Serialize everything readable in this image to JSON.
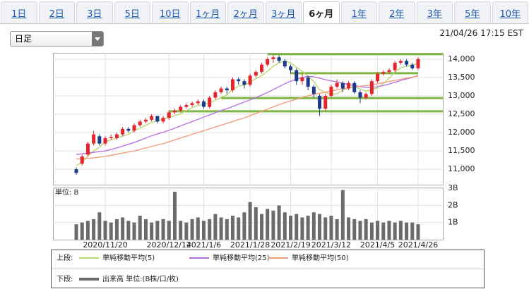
{
  "tabs": [
    "1日",
    "2日",
    "3日",
    "5日",
    "10日",
    "1ヶ月",
    "2ヶ月",
    "3ヶ月",
    "6ヶ月",
    "1年",
    "2年",
    "3年",
    "5年",
    "10年"
  ],
  "active_tab": 8,
  "dropdown": "日足",
  "timestamp": "21/04/26 17:15 EST",
  "legend": {
    "upper": "上段:",
    "lower": "下段:"
  },
  "chart_data": [
    {
      "type": "candlestick",
      "categories": [
        null,
        null,
        null,
        null,
        null,
        "2020/11/20",
        null,
        null,
        null,
        null,
        null,
        null,
        null,
        null,
        null,
        null,
        "2020/12/14",
        null,
        null,
        null,
        null,
        null,
        "2021/1/6",
        null,
        null,
        null,
        null,
        null,
        null,
        null,
        "2021/1/28",
        null,
        null,
        null,
        null,
        null,
        null,
        "2021/2/19",
        null,
        null,
        null,
        null,
        null,
        null,
        "2021/3/12",
        null,
        null,
        null,
        null,
        null,
        null,
        null,
        "2021/4/5",
        null,
        null,
        null,
        null,
        null,
        null,
        "2021/4/26"
      ],
      "open": [
        11000,
        11150,
        11400,
        11700,
        11900,
        11700,
        11850,
        11850,
        11950,
        12100,
        12050,
        12200,
        12300,
        12350,
        12450,
        12300,
        12400,
        12550,
        12600,
        12700,
        12750,
        12800,
        12850,
        12700,
        12950,
        13100,
        13200,
        13150,
        13450,
        13400,
        13300,
        13550,
        13650,
        13850,
        14000,
        14050,
        13950,
        13800,
        13700,
        13400,
        13500,
        13250,
        13000,
        12650,
        13000,
        13250,
        13350,
        13200,
        13350,
        13100,
        12950,
        13050,
        13400,
        13600,
        13650,
        13700,
        13900,
        13950,
        13850,
        13750
      ],
      "high": [
        11050,
        11400,
        11750,
        12050,
        11950,
        11900,
        11950,
        12000,
        12150,
        12150,
        12250,
        12350,
        12400,
        12500,
        12450,
        12450,
        12600,
        12650,
        12750,
        12800,
        12850,
        12900,
        12900,
        13000,
        13150,
        13250,
        13250,
        13500,
        13500,
        13450,
        13600,
        13700,
        13900,
        14050,
        14100,
        14100,
        14000,
        13850,
        13750,
        13600,
        13550,
        13300,
        13050,
        13050,
        13300,
        13450,
        13400,
        13400,
        13400,
        13150,
        13100,
        13450,
        13650,
        13700,
        13750,
        13950,
        14000,
        14000,
        13900,
        14050
      ],
      "low": [
        10850,
        11100,
        11350,
        11650,
        11650,
        11650,
        11800,
        11800,
        11900,
        12000,
        12000,
        12150,
        12250,
        12300,
        12250,
        12250,
        12350,
        12500,
        12550,
        12650,
        12700,
        12750,
        12650,
        12650,
        12900,
        13050,
        13050,
        13100,
        13300,
        13200,
        13250,
        13500,
        13600,
        13800,
        13900,
        13900,
        13750,
        13600,
        13300,
        13300,
        13150,
        12950,
        12450,
        12600,
        12950,
        13200,
        13100,
        13150,
        13050,
        12800,
        12900,
        13000,
        13350,
        13550,
        13600,
        13650,
        13850,
        13800,
        13700,
        13700
      ],
      "close": [
        10900,
        11350,
        11700,
        11950,
        11700,
        11850,
        11880,
        11950,
        12100,
        12050,
        12200,
        12300,
        12350,
        12450,
        12300,
        12400,
        12550,
        12600,
        12700,
        12750,
        12800,
        12850,
        12700,
        12950,
        13100,
        13200,
        13150,
        13450,
        13400,
        13300,
        13550,
        13650,
        13850,
        14000,
        14050,
        13950,
        13800,
        13700,
        13400,
        13500,
        13250,
        13050,
        12650,
        13000,
        13250,
        13350,
        13200,
        13350,
        13100,
        12950,
        13050,
        13400,
        13600,
        13650,
        13700,
        13900,
        13950,
        13850,
        13750,
        14000
      ],
      "up_color": "#e3262c",
      "down_color": "#1c3a8c",
      "series": [
        {
          "name": "単純移動平均(5)",
          "color": "#b5d66a",
          "values": [
            11100,
            11200,
            11350,
            11500,
            11600,
            11750,
            11800,
            11850,
            11900,
            11950,
            12050,
            12120,
            12200,
            12270,
            12320,
            12360,
            12410,
            12460,
            12510,
            12600,
            12680,
            12740,
            12760,
            12810,
            12880,
            12960,
            13020,
            13180,
            13260,
            13300,
            13370,
            13470,
            13550,
            13670,
            13810,
            13900,
            13950,
            13900,
            13780,
            13670,
            13530,
            13390,
            13170,
            13090,
            13040,
            13060,
            13150,
            13230,
            13250,
            13190,
            13130,
            13170,
            13220,
            13330,
            13480,
            13650,
            13760,
            13810,
            13830,
            13890
          ]
        },
        {
          "name": "単純移動平均(25)",
          "color": "#b36ee0",
          "values": [
            11400,
            11420,
            11440,
            11460,
            11480,
            11500,
            11540,
            11580,
            11630,
            11680,
            11730,
            11790,
            11850,
            11910,
            11960,
            12010,
            12060,
            12120,
            12180,
            12240,
            12300,
            12360,
            12420,
            12480,
            12540,
            12600,
            12650,
            12710,
            12770,
            12830,
            12890,
            12950,
            13020,
            13090,
            13170,
            13250,
            13330,
            13400,
            13450,
            13500,
            13530,
            13520,
            13480,
            13440,
            13410,
            13380,
            13340,
            13310,
            13280,
            13250,
            13230,
            13230,
            13250,
            13280,
            13320,
            13370,
            13420,
            13460,
            13500,
            13560
          ]
        },
        {
          "name": "単純移動平均(50)",
          "color": "#f29a7a",
          "values": [
            11280,
            11290,
            11300,
            11310,
            11330,
            11350,
            11380,
            11410,
            11440,
            11470,
            11500,
            11540,
            11580,
            11620,
            11660,
            11700,
            11750,
            11800,
            11850,
            11900,
            11950,
            12000,
            12050,
            12100,
            12150,
            12200,
            12250,
            12300,
            12350,
            12400,
            12460,
            12520,
            12580,
            12640,
            12700,
            12760,
            12810,
            12860,
            12910,
            12960,
            13000,
            13040,
            13070,
            13100,
            13130,
            13160,
            13190,
            13220,
            13240,
            13260,
            13280,
            13300,
            13330,
            13360,
            13390,
            13420,
            13450,
            13480,
            13510,
            13540
          ]
        }
      ],
      "hlines": [
        {
          "value": 14135,
          "start": 33
        },
        {
          "value": 13615,
          "start": 37,
          "end": 59
        },
        {
          "value": 12940,
          "start": 25
        },
        {
          "value": 12580,
          "start": 16
        }
      ],
      "hline_color": "#7fb544",
      "ylim": [
        10580,
        14170
      ],
      "yticks": [
        {
          "value": 11000,
          "label": "11,000"
        },
        {
          "value": 11500,
          "label": "11,500"
        },
        {
          "value": 12000,
          "label": "12,000"
        },
        {
          "value": 12500,
          "label": "12,500"
        },
        {
          "value": 13000,
          "label": "13,000"
        },
        {
          "value": 13500,
          "label": "13,500"
        },
        {
          "value": 14000,
          "label": "14,000"
        }
      ],
      "grid": true
    },
    {
      "type": "bar",
      "unit_label": "単位: B",
      "series": [
        {
          "name": "出来高 単位:(B株/口/枚)",
          "color": "#6b6b6b",
          "values": [
            0.9,
            1.0,
            1.1,
            1.2,
            1.6,
            1.1,
            1.0,
            1.2,
            1.3,
            1.1,
            1.0,
            1.4,
            1.2,
            1.0,
            1.1,
            1.2,
            1.1,
            2.8,
            1.1,
            1.0,
            1.2,
            1.3,
            1.1,
            1.2,
            1.5,
            1.3,
            1.2,
            1.4,
            1.3,
            1.6,
            2.2,
            1.9,
            1.5,
            1.8,
            1.7,
            2.0,
            1.6,
            1.4,
            1.5,
            1.3,
            1.4,
            1.6,
            1.5,
            1.3,
            1.4,
            1.2,
            2.9,
            1.3,
            1.2,
            1.1,
            1.2,
            1.0,
            1.1,
            1.0,
            1.1,
            1.0,
            1.1,
            1.0,
            1.0,
            0.9
          ]
        }
      ],
      "ylim": [
        0,
        3.05
      ],
      "yticks": [
        {
          "value": 1,
          "label": "1B"
        },
        {
          "value": 2,
          "label": "2B"
        },
        {
          "value": 3,
          "label": "3B"
        }
      ],
      "grid": true
    }
  ]
}
